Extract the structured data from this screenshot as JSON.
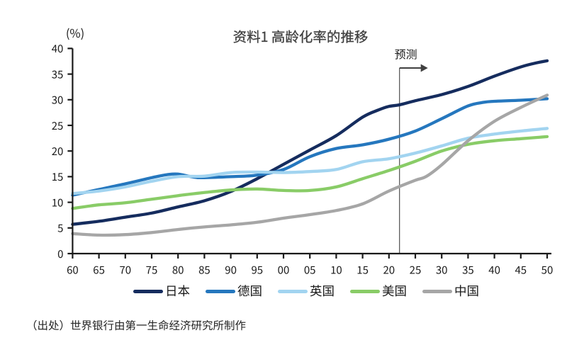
{
  "page": {
    "background": "#ffffff"
  },
  "chart_data": {
    "type": "line",
    "title": "资料1 高龄化率的推移",
    "ylabel": "(%)",
    "xlabel": "",
    "ylim": [
      0,
      40
    ],
    "yticks": [
      0,
      5,
      10,
      15,
      20,
      25,
      30,
      35,
      40
    ],
    "xlim": [
      1960,
      2050
    ],
    "xticks": [
      {
        "year": 1960,
        "label": "60"
      },
      {
        "year": 1965,
        "label": "65"
      },
      {
        "year": 1970,
        "label": "70"
      },
      {
        "year": 1975,
        "label": "75"
      },
      {
        "year": 1980,
        "label": "80"
      },
      {
        "year": 1985,
        "label": "85"
      },
      {
        "year": 1990,
        "label": "90"
      },
      {
        "year": 1995,
        "label": "95"
      },
      {
        "year": 2000,
        "label": "00"
      },
      {
        "year": 2005,
        "label": "05"
      },
      {
        "year": 2010,
        "label": "10"
      },
      {
        "year": 2015,
        "label": "15"
      },
      {
        "year": 2020,
        "label": "20"
      },
      {
        "year": 2025,
        "label": "25"
      },
      {
        "year": 2030,
        "label": "30"
      },
      {
        "year": 2035,
        "label": "35"
      },
      {
        "year": 2040,
        "label": "40"
      },
      {
        "year": 2045,
        "label": "45"
      },
      {
        "year": 2050,
        "label": "50"
      }
    ],
    "grid": false,
    "legend_position": "bottom",
    "forecast": {
      "label": "预测",
      "year": 2022
    },
    "series": [
      {
        "name": "日本",
        "color": "#152c5e",
        "points": [
          [
            1960,
            5.7
          ],
          [
            1965,
            6.3
          ],
          [
            1970,
            7.1
          ],
          [
            1975,
            7.9
          ],
          [
            1980,
            9.1
          ],
          [
            1985,
            10.3
          ],
          [
            1990,
            12.1
          ],
          [
            1995,
            14.6
          ],
          [
            2000,
            17.4
          ],
          [
            2005,
            20.2
          ],
          [
            2010,
            23.0
          ],
          [
            2015,
            26.6
          ],
          [
            2018,
            28.0
          ],
          [
            2020,
            28.7
          ],
          [
            2022,
            29.0
          ],
          [
            2025,
            29.8
          ],
          [
            2030,
            31.0
          ],
          [
            2035,
            32.6
          ],
          [
            2040,
            34.6
          ],
          [
            2045,
            36.4
          ],
          [
            2048,
            37.2
          ],
          [
            2050,
            37.6
          ]
        ]
      },
      {
        "name": "德国",
        "color": "#2577be",
        "points": [
          [
            1960,
            11.4
          ],
          [
            1965,
            12.5
          ],
          [
            1970,
            13.6
          ],
          [
            1975,
            14.8
          ],
          [
            1978,
            15.4
          ],
          [
            1980,
            15.5
          ],
          [
            1983,
            14.9
          ],
          [
            1985,
            14.8
          ],
          [
            1990,
            15.0
          ],
          [
            1995,
            15.3
          ],
          [
            2000,
            16.4
          ],
          [
            2005,
            18.9
          ],
          [
            2010,
            20.5
          ],
          [
            2015,
            21.2
          ],
          [
            2020,
            22.3
          ],
          [
            2025,
            23.9
          ],
          [
            2030,
            26.3
          ],
          [
            2035,
            28.8
          ],
          [
            2038,
            29.5
          ],
          [
            2040,
            29.7
          ],
          [
            2045,
            29.9
          ],
          [
            2050,
            30.2
          ]
        ]
      },
      {
        "name": "英国",
        "color": "#a2d4f0",
        "points": [
          [
            1960,
            11.7
          ],
          [
            1965,
            12.2
          ],
          [
            1970,
            13.0
          ],
          [
            1975,
            14.1
          ],
          [
            1980,
            15.0
          ],
          [
            1985,
            15.1
          ],
          [
            1990,
            15.8
          ],
          [
            1995,
            15.9
          ],
          [
            2000,
            15.8
          ],
          [
            2005,
            16.0
          ],
          [
            2010,
            16.4
          ],
          [
            2015,
            17.9
          ],
          [
            2020,
            18.5
          ],
          [
            2025,
            19.6
          ],
          [
            2030,
            21.0
          ],
          [
            2035,
            22.5
          ],
          [
            2040,
            23.3
          ],
          [
            2045,
            23.9
          ],
          [
            2050,
            24.4
          ]
        ]
      },
      {
        "name": "美国",
        "color": "#89cc67",
        "points": [
          [
            1960,
            8.8
          ],
          [
            1965,
            9.5
          ],
          [
            1970,
            9.9
          ],
          [
            1975,
            10.6
          ],
          [
            1980,
            11.3
          ],
          [
            1985,
            11.9
          ],
          [
            1990,
            12.4
          ],
          [
            1995,
            12.6
          ],
          [
            2000,
            12.3
          ],
          [
            2005,
            12.3
          ],
          [
            2010,
            13.0
          ],
          [
            2015,
            14.6
          ],
          [
            2020,
            16.2
          ],
          [
            2025,
            18.0
          ],
          [
            2030,
            20.0
          ],
          [
            2035,
            21.3
          ],
          [
            2040,
            22.0
          ],
          [
            2045,
            22.4
          ],
          [
            2050,
            22.8
          ]
        ]
      },
      {
        "name": "中国",
        "color": "#a6a6a6",
        "points": [
          [
            1960,
            3.9
          ],
          [
            1965,
            3.6
          ],
          [
            1970,
            3.7
          ],
          [
            1975,
            4.1
          ],
          [
            1980,
            4.7
          ],
          [
            1985,
            5.2
          ],
          [
            1990,
            5.6
          ],
          [
            1995,
            6.1
          ],
          [
            2000,
            6.9
          ],
          [
            2005,
            7.6
          ],
          [
            2010,
            8.4
          ],
          [
            2015,
            9.7
          ],
          [
            2020,
            12.2
          ],
          [
            2025,
            14.3
          ],
          [
            2027,
            15.0
          ],
          [
            2030,
            17.3
          ],
          [
            2035,
            22.0
          ],
          [
            2040,
            25.8
          ],
          [
            2045,
            28.5
          ],
          [
            2050,
            30.9
          ]
        ]
      }
    ],
    "source": "（出处）世界银行由第一生命经济研究所制作"
  },
  "colors": {
    "axis": "#1a1a1a",
    "tick_label": "#1a1a1a",
    "title": "#404040",
    "forecast_line": "#505050",
    "forecast_arrow": "#404040",
    "legend_label": "#1a1a1a",
    "source_text": "#262626"
  }
}
